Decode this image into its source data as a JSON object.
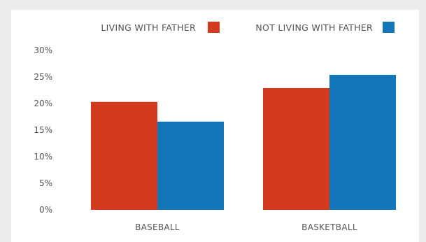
{
  "chart_data": {
    "type": "bar",
    "title": "",
    "xlabel": "",
    "ylabel": "",
    "categories": [
      "BASEBALL",
      "BASKETBALL"
    ],
    "series": [
      {
        "name": "LIVING WITH FATHER",
        "values": [
          20.3,
          22.9
        ],
        "color": "#d13a1c"
      },
      {
        "name": "NOT LIVING WITH FATHER",
        "values": [
          16.6,
          25.4
        ],
        "color": "#1276b9"
      }
    ],
    "ylim": [
      0,
      30
    ],
    "yticks": [
      0,
      5,
      10,
      15,
      20,
      25,
      30
    ],
    "ytick_labels": [
      "0%",
      "5%",
      "10%",
      "15%",
      "20%",
      "25%",
      "30%"
    ],
    "grid": false,
    "legend_position": "top"
  }
}
